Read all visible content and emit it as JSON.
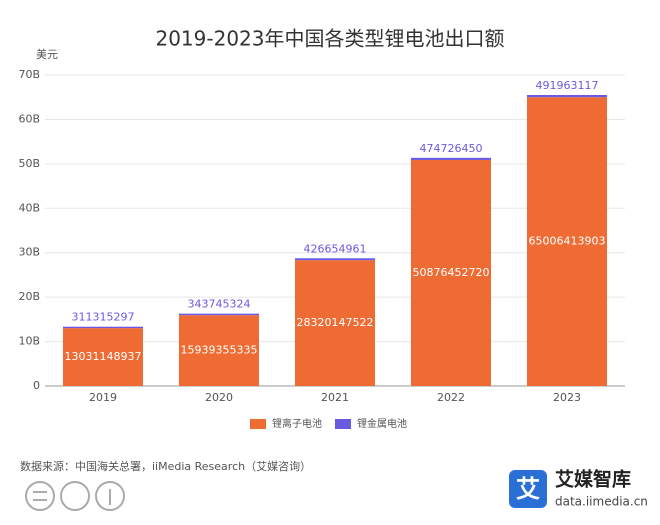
{
  "chart_data": {
    "type": "stacked_bar",
    "title": "2019-2023年中国各类型锂电池出口额",
    "y_unit": "美元",
    "categories": [
      "2019",
      "2020",
      "2021",
      "2022",
      "2023"
    ],
    "series": [
      {
        "name": "锂离子电池",
        "color": "#ee6c34",
        "values": [
          13031148937,
          15939355335,
          28320147522,
          50876452720,
          65006413903
        ]
      },
      {
        "name": "锂金属电池",
        "color": "#6a5ae2",
        "values": [
          311315297,
          343745324,
          426654961,
          474726450,
          491963117
        ]
      }
    ],
    "ylim": [
      0,
      70000000000
    ],
    "yticks": [
      {
        "value": 0,
        "label": "0"
      },
      {
        "value": 10000000000,
        "label": "10B"
      },
      {
        "value": 20000000000,
        "label": "20B"
      },
      {
        "value": 30000000000,
        "label": "30B"
      },
      {
        "value": 40000000000,
        "label": "40B"
      },
      {
        "value": 50000000000,
        "label": "50B"
      },
      {
        "value": 60000000000,
        "label": "60B"
      },
      {
        "value": 70000000000,
        "label": "70B"
      }
    ],
    "grid": true,
    "legend": "bottom"
  },
  "footer": {
    "source": "数据来源：中国海关总署，iiMedia Research（艾媒咨询）",
    "brand": "艾媒智库",
    "brand_icon": "艾",
    "url": "data.iimedia.cn"
  }
}
